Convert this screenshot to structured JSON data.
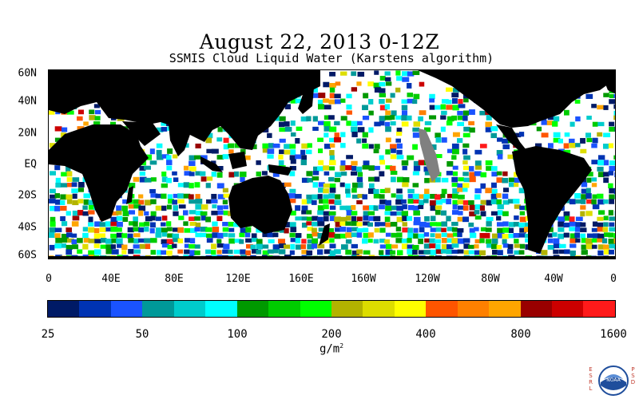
{
  "title": "August 22, 2013 0-12Z",
  "subtitle": "SSMIS Cloud Liquid Water (Karstens algorithm)",
  "map": {
    "lat_labels": [
      "60N",
      "40N",
      "20N",
      "EQ",
      "20S",
      "40S",
      "60S"
    ],
    "lon_labels": [
      "0",
      "40E",
      "80E",
      "120E",
      "160E",
      "160W",
      "120W",
      "80W",
      "40W",
      "0"
    ],
    "land_color": "#000000",
    "nodata_color": "#ffffff",
    "gap_color": "#808080"
  },
  "colorbar": {
    "colors": [
      "#001a66",
      "#0033b3",
      "#1a53ff",
      "#009999",
      "#00cccc",
      "#00ffff",
      "#009900",
      "#00cc00",
      "#00ff00",
      "#b3b300",
      "#dddd00",
      "#ffff00",
      "#ff5500",
      "#ff8000",
      "#ffa500",
      "#990000",
      "#cc0000",
      "#ff1a1a"
    ],
    "tick_labels": [
      "25",
      "50",
      "100",
      "200",
      "400",
      "800",
      "1600"
    ],
    "units": "g/m",
    "units_sup": "2"
  },
  "logo": {
    "left_letters": "ESRL",
    "right_letters": "PSD",
    "center_text": "NOAA"
  }
}
